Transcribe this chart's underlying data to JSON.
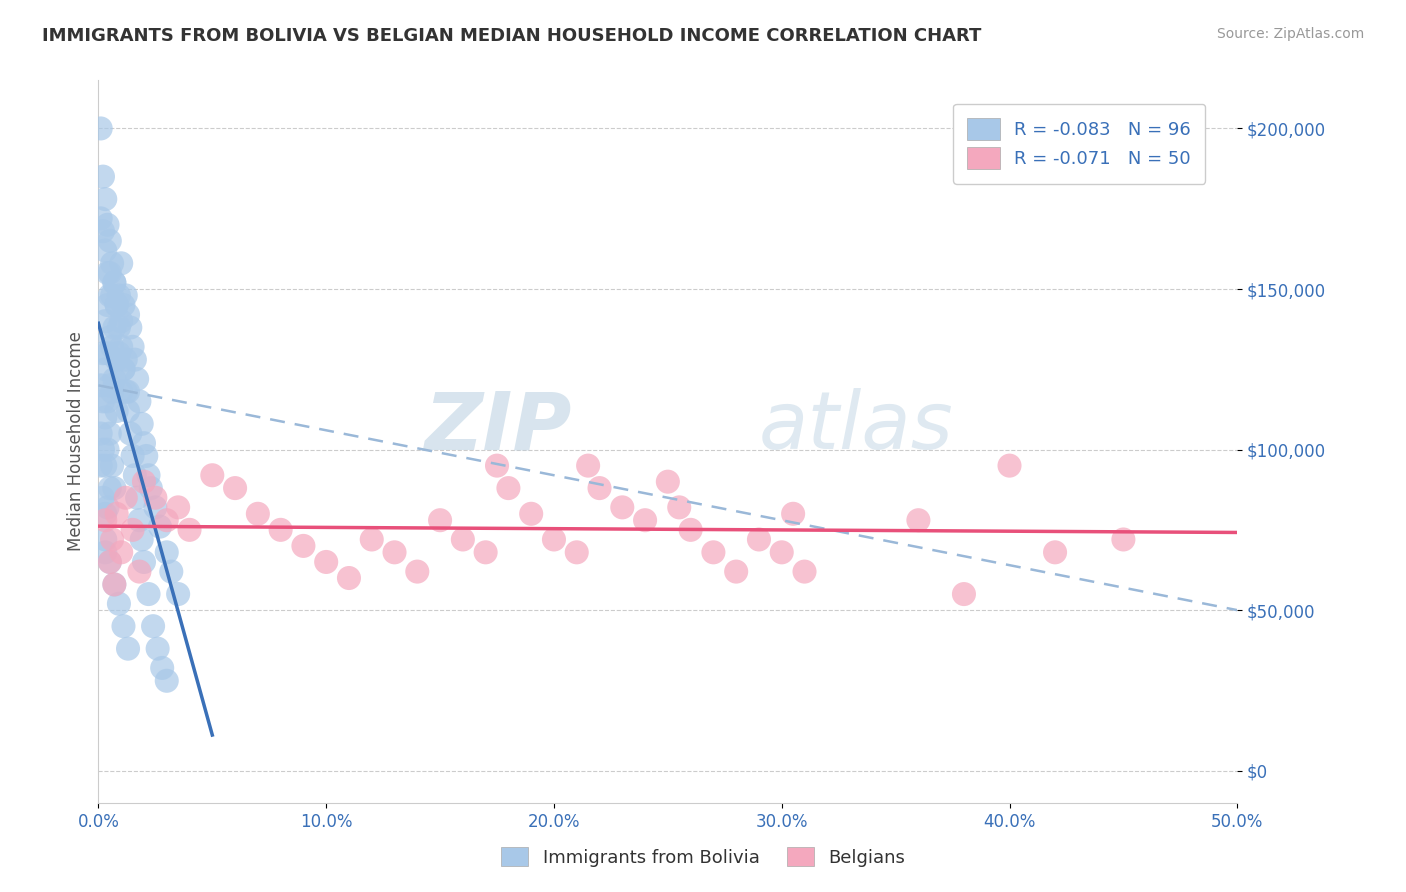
{
  "title": "IMMIGRANTS FROM BOLIVIA VS BELGIAN MEDIAN HOUSEHOLD INCOME CORRELATION CHART",
  "source": "Source: ZipAtlas.com",
  "ylabel": "Median Household Income",
  "legend_label1": "Immigrants from Bolivia",
  "legend_label2": "Belgians",
  "legend_R1": "R = -0.083",
  "legend_N1": "N = 96",
  "legend_R2": "R = -0.071",
  "legend_N2": "N = 50",
  "color_blue": "#a8c8e8",
  "color_pink": "#f4a8be",
  "color_blue_line": "#3a70b8",
  "color_pink_line": "#e8507a",
  "color_dashed": "#9ab8d8",
  "color_axis_label": "#3a70b8",
  "color_legend_text": "#3a70b8",
  "color_title": "#333333",
  "color_source": "#999999",
  "color_grid": "#cccccc",
  "xlim": [
    0.0,
    0.5
  ],
  "ylim": [
    -10000,
    215000
  ],
  "yticks": [
    0,
    50000,
    100000,
    150000,
    200000
  ],
  "xticks": [
    0.0,
    0.1,
    0.2,
    0.3,
    0.4,
    0.5
  ],
  "blue_points_x": [
    0.001,
    0.001,
    0.001,
    0.002,
    0.002,
    0.002,
    0.002,
    0.003,
    0.003,
    0.003,
    0.003,
    0.003,
    0.003,
    0.004,
    0.004,
    0.004,
    0.004,
    0.004,
    0.005,
    0.005,
    0.005,
    0.005,
    0.005,
    0.006,
    0.006,
    0.006,
    0.006,
    0.007,
    0.007,
    0.007,
    0.007,
    0.008,
    0.008,
    0.008,
    0.009,
    0.009,
    0.01,
    0.01,
    0.01,
    0.011,
    0.011,
    0.012,
    0.012,
    0.013,
    0.013,
    0.014,
    0.015,
    0.016,
    0.017,
    0.018,
    0.019,
    0.02,
    0.021,
    0.022,
    0.023,
    0.025,
    0.027,
    0.03,
    0.032,
    0.035,
    0.001,
    0.001,
    0.002,
    0.002,
    0.003,
    0.003,
    0.004,
    0.004,
    0.005,
    0.005,
    0.006,
    0.007,
    0.008,
    0.009,
    0.01,
    0.011,
    0.012,
    0.013,
    0.014,
    0.015,
    0.016,
    0.017,
    0.018,
    0.019,
    0.02,
    0.022,
    0.024,
    0.026,
    0.028,
    0.03,
    0.003,
    0.005,
    0.007,
    0.009,
    0.011,
    0.013
  ],
  "blue_points_y": [
    120000,
    105000,
    95000,
    130000,
    115000,
    100000,
    85000,
    140000,
    125000,
    110000,
    95000,
    80000,
    68000,
    145000,
    130000,
    115000,
    100000,
    82000,
    155000,
    135000,
    120000,
    105000,
    88000,
    148000,
    132000,
    118000,
    95000,
    152000,
    138000,
    122000,
    88000,
    145000,
    128000,
    112000,
    148000,
    130000,
    158000,
    140000,
    118000,
    145000,
    125000,
    148000,
    128000,
    142000,
    118000,
    138000,
    132000,
    128000,
    122000,
    115000,
    108000,
    102000,
    98000,
    92000,
    88000,
    82000,
    76000,
    68000,
    62000,
    55000,
    200000,
    172000,
    185000,
    168000,
    178000,
    162000,
    170000,
    155000,
    165000,
    148000,
    158000,
    152000,
    145000,
    138000,
    132000,
    125000,
    118000,
    112000,
    105000,
    98000,
    92000,
    85000,
    78000,
    72000,
    65000,
    55000,
    45000,
    38000,
    32000,
    28000,
    72000,
    65000,
    58000,
    52000,
    45000,
    38000
  ],
  "pink_points_x": [
    0.003,
    0.005,
    0.006,
    0.007,
    0.008,
    0.01,
    0.012,
    0.015,
    0.018,
    0.02,
    0.025,
    0.03,
    0.035,
    0.04,
    0.05,
    0.06,
    0.07,
    0.08,
    0.09,
    0.1,
    0.11,
    0.12,
    0.13,
    0.14,
    0.15,
    0.16,
    0.17,
    0.175,
    0.18,
    0.19,
    0.2,
    0.21,
    0.215,
    0.22,
    0.23,
    0.24,
    0.25,
    0.255,
    0.26,
    0.27,
    0.28,
    0.29,
    0.3,
    0.305,
    0.31,
    0.36,
    0.38,
    0.4,
    0.42,
    0.45
  ],
  "pink_points_y": [
    78000,
    65000,
    72000,
    58000,
    80000,
    68000,
    85000,
    75000,
    62000,
    90000,
    85000,
    78000,
    82000,
    75000,
    92000,
    88000,
    80000,
    75000,
    70000,
    65000,
    60000,
    72000,
    68000,
    62000,
    78000,
    72000,
    68000,
    95000,
    88000,
    80000,
    72000,
    68000,
    95000,
    88000,
    82000,
    78000,
    90000,
    82000,
    75000,
    68000,
    62000,
    72000,
    68000,
    80000,
    62000,
    78000,
    55000,
    95000,
    68000,
    72000
  ],
  "watermark_zip": "ZIP",
  "watermark_atlas": "atlas",
  "background_color": "#ffffff"
}
